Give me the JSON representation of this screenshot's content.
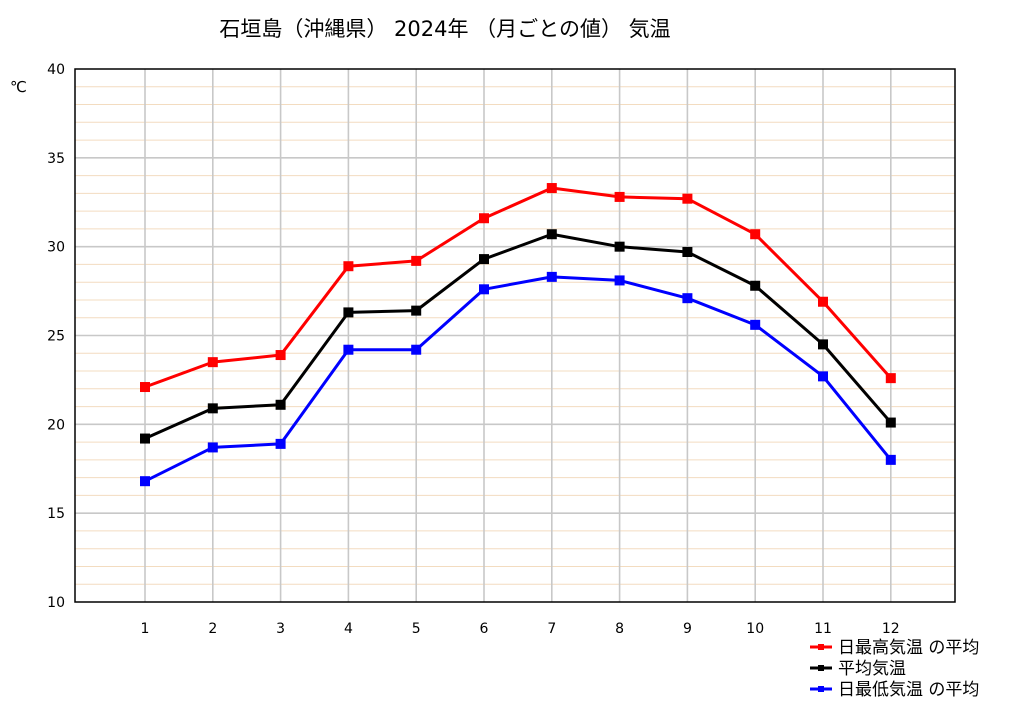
{
  "chart_data": {
    "type": "line",
    "title": "石垣島（沖縄県） 2024年 （月ごとの値） 気温",
    "ylabel": "℃",
    "xlabel": "",
    "categories": [
      "1",
      "2",
      "3",
      "4",
      "5",
      "6",
      "7",
      "8",
      "9",
      "10",
      "11",
      "12"
    ],
    "ylim": [
      10,
      40
    ],
    "yticks": [
      "10",
      "15",
      "20",
      "25",
      "30",
      "35",
      "40"
    ],
    "grid": true,
    "legend_position": "bottom-right",
    "series": [
      {
        "name": "日最高気温 の平均",
        "color": "#ff0000",
        "values": [
          22.1,
          23.5,
          23.9,
          28.9,
          29.2,
          31.6,
          33.3,
          32.8,
          32.7,
          30.7,
          26.9,
          22.6
        ]
      },
      {
        "name": "平均気温",
        "color": "#000000",
        "values": [
          19.2,
          20.9,
          21.1,
          26.3,
          26.4,
          29.3,
          30.7,
          30.0,
          29.7,
          27.8,
          24.5,
          20.1
        ]
      },
      {
        "name": "日最低気温 の平均",
        "color": "#0000ff",
        "values": [
          16.8,
          18.7,
          18.9,
          24.2,
          24.2,
          27.6,
          28.3,
          28.1,
          27.1,
          25.6,
          22.7,
          18.0
        ]
      }
    ]
  }
}
